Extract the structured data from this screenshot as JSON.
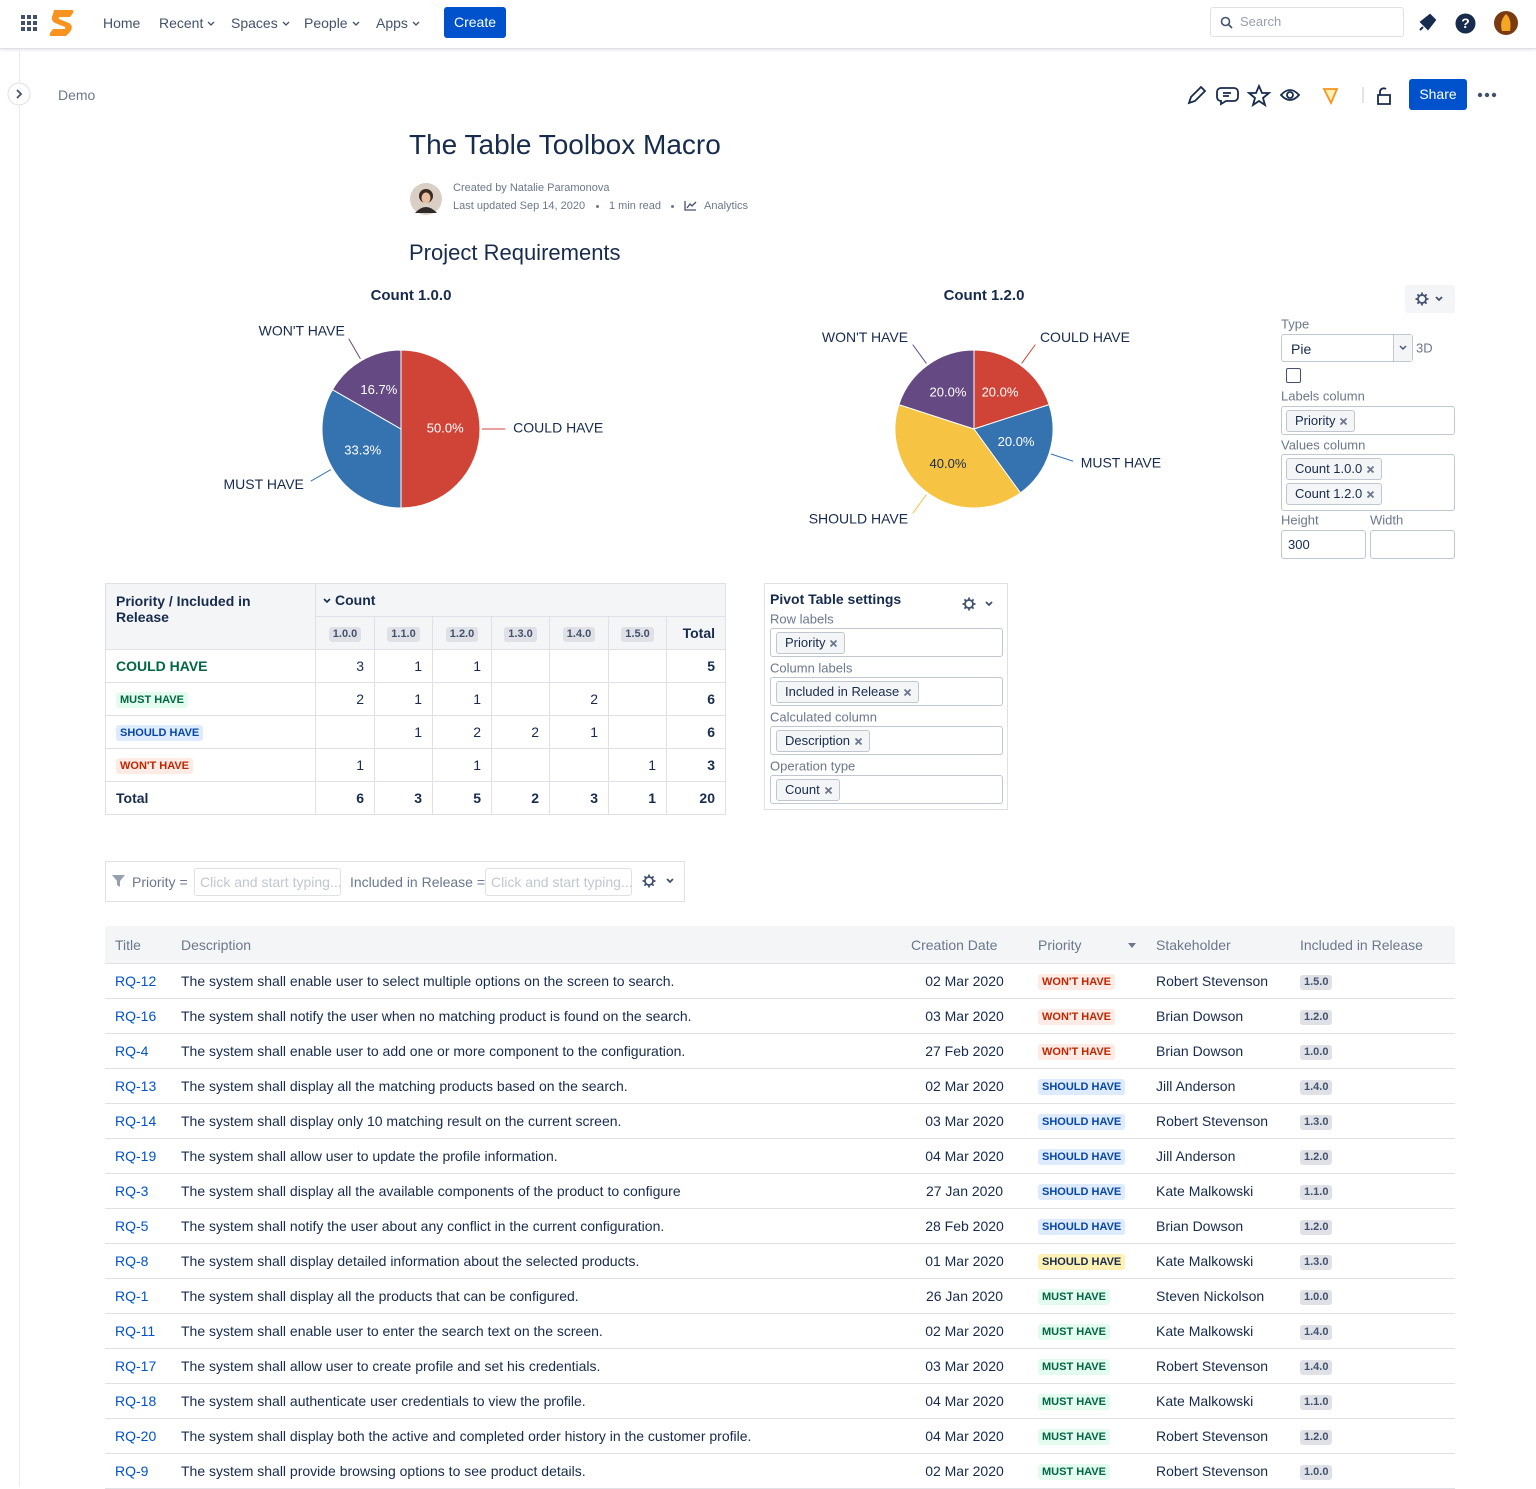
{
  "nav": {
    "items": [
      "Home",
      "Recent",
      "Spaces",
      "People",
      "Apps"
    ],
    "create": "Create",
    "search": "Search"
  },
  "breadcrumb": "Demo",
  "share": "Share",
  "page": {
    "title": "The Table Toolbox Macro",
    "created_by": "Created by Natalie Paramonova",
    "last_updated": "Last updated Sep 14, 2020",
    "read_time": "1 min read",
    "analytics": "Analytics",
    "heading": "Project Requirements"
  },
  "chart_data": [
    {
      "type": "pie",
      "title": "Count 1.0.0",
      "categories": [
        "COULD HAVE",
        "MUST HAVE",
        "WON'T HAVE"
      ],
      "values": [
        50,
        33.3,
        16.7
      ],
      "value_labels": [
        "50.0%",
        "33.3%",
        "16.7%"
      ],
      "colors": [
        "#d04437",
        "#3572b0",
        "#654982"
      ]
    },
    {
      "type": "pie",
      "title": "Count 1.2.0",
      "categories": [
        "COULD HAVE",
        "MUST HAVE",
        "SHOULD HAVE",
        "WON'T HAVE"
      ],
      "values": [
        20,
        20,
        40,
        20
      ],
      "value_labels": [
        "20.0%",
        "20.0%",
        "40.0%",
        "20.0%"
      ],
      "colors": [
        "#d04437",
        "#3572b0",
        "#f6c342",
        "#654982"
      ]
    }
  ],
  "chart_settings": {
    "type_label": "Type",
    "type": "Pie",
    "three_d": "3D",
    "labels_column_label": "Labels column",
    "labels_column": [
      "Priority"
    ],
    "values_column_label": "Values column",
    "values_column": [
      "Count 1.0.0",
      "Count 1.2.0"
    ],
    "height_label": "Height",
    "width_label": "Width",
    "height": "300"
  },
  "pivot": {
    "corner": "Priority / Included in Release",
    "measure": "Count",
    "columns": [
      "1.0.0",
      "1.1.0",
      "1.2.0",
      "1.3.0",
      "1.4.0",
      "1.5.0"
    ],
    "total": "Total",
    "rows": [
      {
        "label": "COULD HAVE",
        "cells": [
          3,
          1,
          1,
          null,
          null,
          null
        ],
        "total": 5
      },
      {
        "label": "MUST HAVE",
        "cells": [
          2,
          1,
          1,
          null,
          2,
          null
        ],
        "total": 6
      },
      {
        "label": "SHOULD HAVE",
        "cells": [
          null,
          1,
          2,
          2,
          1,
          null
        ],
        "total": 6
      },
      {
        "label": "WON'T HAVE",
        "cells": [
          1,
          null,
          1,
          null,
          null,
          1
        ],
        "total": 3
      }
    ],
    "total_row": {
      "label": "Total",
      "cells": [
        6,
        3,
        5,
        2,
        3,
        1
      ],
      "total": 20
    }
  },
  "pivot_settings": {
    "title": "Pivot Table settings",
    "fields": [
      {
        "label": "Row labels",
        "tags": [
          "Priority"
        ]
      },
      {
        "label": "Column labels",
        "tags": [
          "Included in Release"
        ]
      },
      {
        "label": "Calculated column",
        "tags": [
          "Description"
        ]
      },
      {
        "label": "Operation type",
        "tags": [
          "Count"
        ]
      }
    ]
  },
  "filter": {
    "fields": [
      {
        "label": "Priority =",
        "placeholder": "Click and start typing..."
      },
      {
        "label": "Included in Release =",
        "placeholder": "Click and start typing..."
      }
    ]
  },
  "table": {
    "headers": [
      "Title",
      "Description",
      "Creation Date",
      "Priority",
      "Stakeholder",
      "Included in Release"
    ],
    "rows": [
      [
        "RQ-12",
        "The system shall enable user to select multiple options on the screen to search.",
        "02 Mar 2020",
        "WON'T HAVE",
        "Robert Stevenson",
        "1.5.0"
      ],
      [
        "RQ-16",
        "The system shall notify the user when no matching product is found on the search.",
        "03 Mar 2020",
        "WON'T HAVE",
        "Brian Dowson",
        "1.2.0"
      ],
      [
        "RQ-4",
        "The system shall enable user to add one or more component to the configuration.",
        "27 Feb 2020",
        "WON'T HAVE",
        "Brian Dowson",
        "1.0.0"
      ],
      [
        "RQ-13",
        "The system shall display all the matching products based on the search.",
        "02 Mar 2020",
        "SHOULD HAVE",
        "Jill Anderson",
        "1.4.0"
      ],
      [
        "RQ-14",
        "The system shall display only 10 matching result on the current screen.",
        "03 Mar 2020",
        "SHOULD HAVE",
        "Robert Stevenson",
        "1.3.0"
      ],
      [
        "RQ-19",
        "The system shall allow user to update the profile information.",
        "04 Mar 2020",
        "SHOULD HAVE",
        "Jill Anderson",
        "1.2.0"
      ],
      [
        "RQ-3",
        "The system shall display all the available components of the product to configure",
        "27 Jan 2020",
        "SHOULD HAVE",
        "Kate Malkowski",
        "1.1.0"
      ],
      [
        "RQ-5",
        "The system shall notify the user about any conflict in the current configuration.",
        "28 Feb 2020",
        "SHOULD HAVE",
        "Brian Dowson",
        "1.2.0"
      ],
      [
        "RQ-8",
        "The system shall display detailed information about the selected products.",
        "01 Mar 2020",
        "SHOULD HAVE",
        "Kate Malkowski",
        "1.3.0"
      ],
      [
        "RQ-1",
        "The system shall display all the products that can be configured.",
        "26 Jan 2020",
        "MUST HAVE",
        "Steven Nickolson",
        "1.0.0"
      ],
      [
        "RQ-11",
        "The system shall enable user to enter the search text on the screen.",
        "02 Mar 2020",
        "MUST HAVE",
        "Kate Malkowski",
        "1.4.0"
      ],
      [
        "RQ-17",
        "The system shall allow user to create profile and set his credentials.",
        "03 Mar 2020",
        "MUST HAVE",
        "Robert Stevenson",
        "1.4.0"
      ],
      [
        "RQ-18",
        "The system shall authenticate user credentials to view the profile.",
        "04 Mar 2020",
        "MUST HAVE",
        "Kate Malkowski",
        "1.1.0"
      ],
      [
        "RQ-20",
        "The system shall display both the active and completed order history in the customer profile.",
        "04 Mar 2020",
        "MUST HAVE",
        "Robert Stevenson",
        "1.2.0"
      ],
      [
        "RQ-9",
        "The system shall provide browsing options to see product details.",
        "02 Mar 2020",
        "MUST HAVE",
        "Robert Stevenson",
        "1.0.0"
      ]
    ]
  }
}
